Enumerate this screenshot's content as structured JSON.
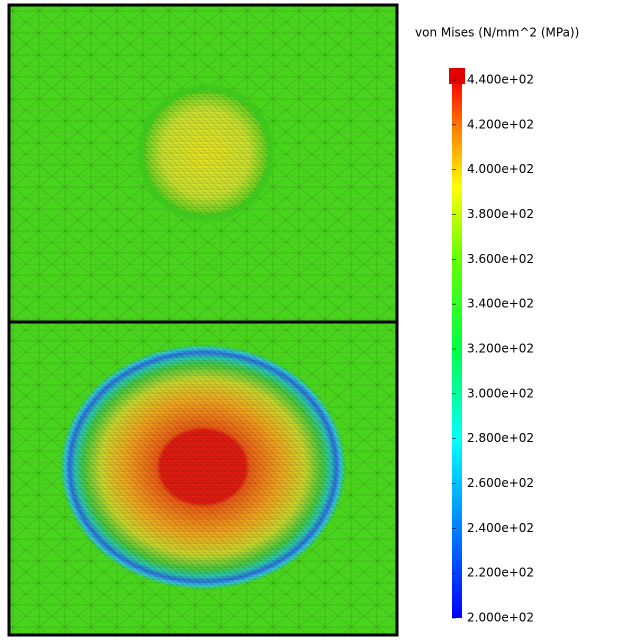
{
  "legend": {
    "title": "von Mises (N/mm^2 (MPa))",
    "labels": [
      "4.400e+02",
      "4.200e+02",
      "4.000e+02",
      "3.800e+02",
      "3.600e+02",
      "3.400e+02",
      "3.200e+02",
      "3.000e+02",
      "2.800e+02",
      "2.600e+02",
      "2.400e+02",
      "2.200e+02",
      "2.000e+02"
    ]
  }
}
